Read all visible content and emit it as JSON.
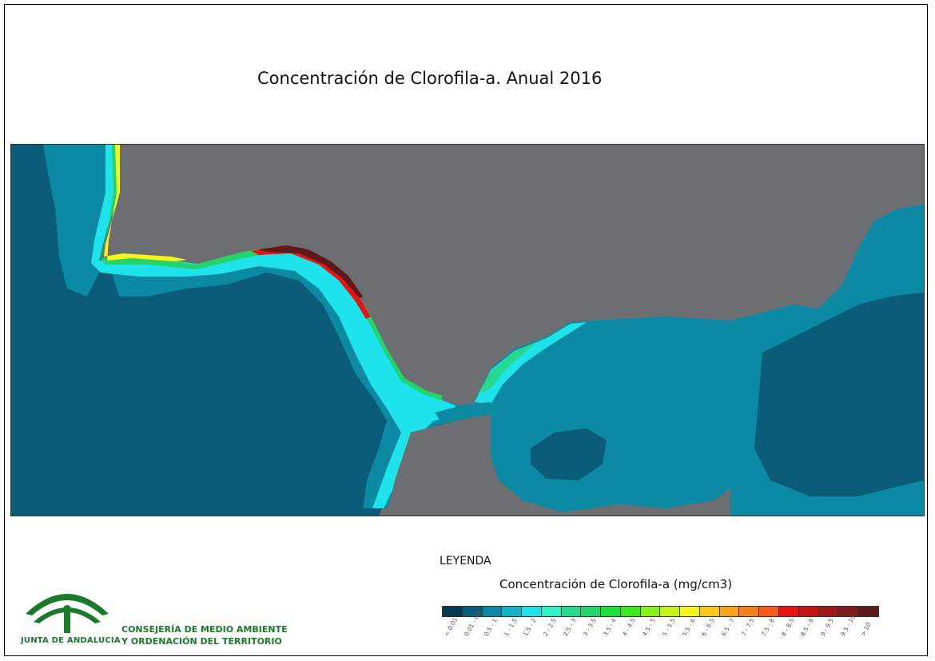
{
  "map": {
    "title": "Concentración de Clorofila-a. Anual 2016"
  },
  "legend": {
    "heading": "LEYENDA",
    "subtitle": "Concentración de Clorofila-a (mg/cm3)",
    "classes": [
      {
        "label": "< 0.01",
        "color": "#083a52"
      },
      {
        "label": "0.01 - 0.5",
        "color": "#0b5c78"
      },
      {
        "label": "0.5 - 1",
        "color": "#0d8aa3"
      },
      {
        "label": "1 - 1.5",
        "color": "#13b4c6"
      },
      {
        "label": "1.5 - 2",
        "color": "#1fe3ea"
      },
      {
        "label": "2 - 2.5",
        "color": "#2ff0c6"
      },
      {
        "label": "2.5 - 3",
        "color": "#27d98f"
      },
      {
        "label": "3 - 3.5",
        "color": "#22d46a"
      },
      {
        "label": "3.5 - 4",
        "color": "#1ee03a"
      },
      {
        "label": "4 - 4.5",
        "color": "#3ee81c"
      },
      {
        "label": "4.5 - 5",
        "color": "#8af01a"
      },
      {
        "label": "5 - 5.5",
        "color": "#c6f21a"
      },
      {
        "label": "5.5 - 6",
        "color": "#f5f51a"
      },
      {
        "label": "6 - 6.5",
        "color": "#f7c81a"
      },
      {
        "label": "6.5 - 7",
        "color": "#f7a41a"
      },
      {
        "label": "7 - 7.5",
        "color": "#f7801a"
      },
      {
        "label": "7.5 - 8",
        "color": "#f75a1a"
      },
      {
        "label": "8 - 8.5",
        "color": "#e81414"
      },
      {
        "label": "8.5 - 9",
        "color": "#c21414"
      },
      {
        "label": "9 - 9.5",
        "color": "#9e1a1a"
      },
      {
        "label": "9.5 - 10",
        "color": "#801c1c"
      },
      {
        "label": "> 10",
        "color": "#5e1a1a"
      }
    ]
  },
  "colors": {
    "land": "#6d6e71",
    "deep_sea": "#0b5c78",
    "mid_sea": "#0d8aa3"
  },
  "logo": {
    "brand": "JUNTA DE ANDALUCIA",
    "org_line1": "CONSEJERÍA DE MEDIO AMBIENTE",
    "org_line2": "Y ORDENACIÓN DEL TERRITORIO"
  }
}
